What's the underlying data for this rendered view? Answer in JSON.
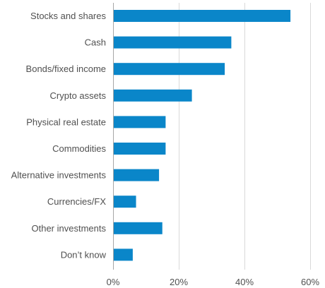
{
  "chart_data": {
    "type": "bar",
    "orientation": "horizontal",
    "title": "",
    "xlabel": "",
    "ylabel": "",
    "categories": [
      "Stocks and shares",
      "Cash",
      "Bonds/fixed income",
      "Crypto assets",
      "Physical real estate",
      "Commodities",
      "Alternative investments",
      "Currencies/FX",
      "Other investments",
      "Don’t know"
    ],
    "values": [
      54,
      36,
      34,
      24,
      16,
      16,
      14,
      7,
      15,
      6
    ],
    "value_unit": "%",
    "xlim": [
      0,
      60
    ],
    "xticks": [
      0,
      20,
      40,
      60
    ],
    "xtick_labels": [
      "0%",
      "20%",
      "40%",
      "60%"
    ],
    "grid": "vertical",
    "legend": "none",
    "bar_color": "#0a86c9"
  }
}
